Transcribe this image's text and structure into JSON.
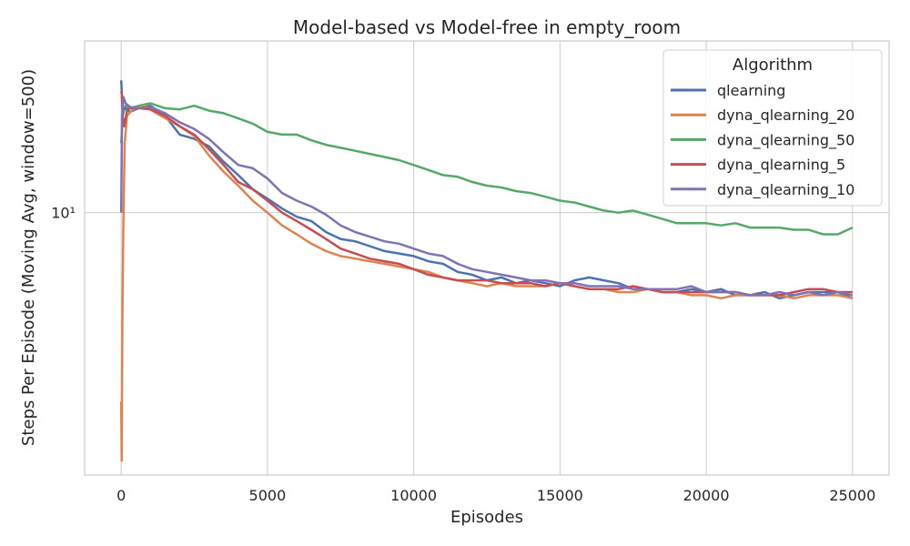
{
  "chart_data": {
    "type": "line",
    "title": "Model-based vs Model-free in empty_room",
    "xlabel": "Episodes",
    "ylabel": "Steps Per Episode (Moving Avg, window=500)",
    "xlim": [
      -1250,
      26250
    ],
    "xticks": [
      0,
      5000,
      10000,
      15000,
      20000,
      25000
    ],
    "xtick_labels": [
      "0",
      "5000",
      "10000",
      "15000",
      "20000",
      "25000"
    ],
    "yscale": "log",
    "ylim": [
      2.8,
      23
    ],
    "yticks": [
      10
    ],
    "ytick_labels": [
      "10¹"
    ],
    "grid": true,
    "legend": {
      "title": "Algorithm",
      "position": "top-right"
    },
    "series": [
      {
        "name": "qlearning",
        "color": "#4c72b0",
        "x": [
          0,
          30,
          60,
          150,
          300,
          600,
          1000,
          1500,
          2000,
          2500,
          3000,
          3500,
          4000,
          4500,
          5000,
          5500,
          6000,
          6500,
          7000,
          7500,
          8000,
          8500,
          9000,
          9500,
          10000,
          10500,
          11000,
          11500,
          12000,
          12500,
          13000,
          13500,
          14000,
          14500,
          15000,
          15500,
          16000,
          16500,
          17000,
          17500,
          18000,
          18500,
          19000,
          19500,
          20000,
          20500,
          21000,
          21500,
          22000,
          22500,
          23000,
          23500,
          24000,
          24500,
          25000
        ],
        "y": [
          19.0,
          17.5,
          16.5,
          16.6,
          16.3,
          16.6,
          16.8,
          16.0,
          14.6,
          14.3,
          13.8,
          12.8,
          12.0,
          11.2,
          10.7,
          10.2,
          9.8,
          9.6,
          9.1,
          8.8,
          8.7,
          8.5,
          8.3,
          8.2,
          8.1,
          7.9,
          7.8,
          7.5,
          7.4,
          7.2,
          7.3,
          7.1,
          7.2,
          7.1,
          7.0,
          7.2,
          7.3,
          7.2,
          7.1,
          6.9,
          6.9,
          6.8,
          6.8,
          6.9,
          6.8,
          6.9,
          6.7,
          6.7,
          6.8,
          6.6,
          6.7,
          6.8,
          6.8,
          6.8,
          6.6
        ]
      },
      {
        "name": "dyna_qlearning_20",
        "color": "#dd8452",
        "x": [
          0,
          15,
          40,
          70,
          120,
          200,
          400,
          800,
          1200,
          1600,
          2000,
          2500,
          3000,
          3500,
          4000,
          4500,
          5000,
          5500,
          6000,
          6500,
          7000,
          7500,
          8000,
          8500,
          9000,
          9500,
          10000,
          10500,
          11000,
          11500,
          12000,
          12500,
          13000,
          13500,
          14000,
          14500,
          15000,
          15500,
          16000,
          16500,
          17000,
          17500,
          18000,
          18500,
          19000,
          19500,
          20000,
          20500,
          21000,
          21500,
          22000,
          22500,
          23000,
          23500,
          24000,
          24500,
          25000
        ],
        "y": [
          4.0,
          3.0,
          6.0,
          9.0,
          14.0,
          16.0,
          16.5,
          16.8,
          16.2,
          15.7,
          15.2,
          14.5,
          13.2,
          12.2,
          11.4,
          10.6,
          10.0,
          9.4,
          9.0,
          8.6,
          8.3,
          8.1,
          8.0,
          7.9,
          7.8,
          7.7,
          7.6,
          7.5,
          7.3,
          7.2,
          7.1,
          7.0,
          7.1,
          7.0,
          7.0,
          7.0,
          7.1,
          7.0,
          6.9,
          6.9,
          6.8,
          6.8,
          6.9,
          6.8,
          6.8,
          6.7,
          6.7,
          6.6,
          6.7,
          6.7,
          6.7,
          6.7,
          6.6,
          6.7,
          6.7,
          6.7,
          6.6
        ]
      },
      {
        "name": "dyna_qlearning_50",
        "color": "#55a868",
        "x": [
          0,
          50,
          150,
          300,
          600,
          1000,
          1500,
          2000,
          2500,
          3000,
          3500,
          4000,
          4500,
          5000,
          5500,
          6000,
          6500,
          7000,
          7500,
          8000,
          8500,
          9000,
          9500,
          10000,
          10500,
          11000,
          11500,
          12000,
          12500,
          13000,
          13500,
          14000,
          14500,
          15000,
          15500,
          16000,
          16500,
          17000,
          17500,
          18000,
          18500,
          19000,
          19500,
          20000,
          20500,
          21000,
          21500,
          22000,
          22500,
          23000,
          23500,
          24000,
          24500,
          25000
        ],
        "y": [
          14.0,
          16.0,
          16.8,
          16.6,
          16.8,
          17.0,
          16.6,
          16.5,
          16.8,
          16.4,
          16.2,
          15.8,
          15.4,
          14.8,
          14.6,
          14.6,
          14.2,
          13.9,
          13.7,
          13.5,
          13.3,
          13.1,
          12.9,
          12.6,
          12.3,
          12.0,
          11.9,
          11.6,
          11.4,
          11.3,
          11.1,
          11.0,
          10.8,
          10.6,
          10.5,
          10.3,
          10.1,
          10.0,
          10.1,
          9.9,
          9.7,
          9.5,
          9.5,
          9.5,
          9.4,
          9.5,
          9.3,
          9.3,
          9.3,
          9.2,
          9.2,
          9.0,
          9.0,
          9.3
        ]
      },
      {
        "name": "dyna_qlearning_5",
        "color": "#c44e52",
        "x": [
          0,
          20,
          50,
          100,
          200,
          300,
          600,
          1000,
          1500,
          2000,
          2500,
          3000,
          3500,
          4000,
          4500,
          5000,
          5500,
          6000,
          6500,
          7000,
          7500,
          8000,
          8500,
          9000,
          9500,
          10000,
          10500,
          11000,
          11500,
          12000,
          12500,
          13000,
          13500,
          14000,
          14500,
          15000,
          15500,
          16000,
          16500,
          17000,
          17500,
          18000,
          18500,
          19000,
          19500,
          20000,
          20500,
          21000,
          21500,
          22000,
          22500,
          23000,
          23500,
          24000,
          24500,
          25000
        ],
        "y": [
          18.0,
          17.8,
          16.0,
          15.2,
          16.4,
          16.6,
          16.6,
          16.5,
          16.0,
          15.2,
          14.6,
          13.6,
          12.6,
          11.6,
          11.2,
          10.6,
          10.0,
          9.6,
          9.2,
          8.8,
          8.4,
          8.2,
          8.0,
          7.9,
          7.8,
          7.6,
          7.4,
          7.3,
          7.2,
          7.2,
          7.2,
          7.1,
          7.1,
          7.1,
          7.0,
          7.1,
          7.0,
          6.9,
          6.9,
          6.9,
          7.0,
          6.9,
          6.8,
          6.8,
          6.8,
          6.8,
          6.8,
          6.8,
          6.7,
          6.7,
          6.7,
          6.8,
          6.9,
          6.9,
          6.8,
          6.8
        ]
      },
      {
        "name": "dyna_qlearning_10",
        "color": "#8172b3",
        "x": [
          0,
          30,
          80,
          150,
          300,
          600,
          1000,
          1500,
          2000,
          2500,
          3000,
          3500,
          4000,
          4500,
          5000,
          5500,
          6000,
          6500,
          7000,
          7500,
          8000,
          8500,
          9000,
          9500,
          10000,
          10500,
          11000,
          11500,
          12000,
          12500,
          13000,
          13500,
          14000,
          14500,
          15000,
          15500,
          16000,
          16500,
          17000,
          17500,
          18000,
          18500,
          19000,
          19500,
          20000,
          20500,
          21000,
          21500,
          22000,
          22500,
          23000,
          23500,
          24000,
          24500,
          25000
        ],
        "y": [
          10.0,
          16.0,
          17.5,
          17.0,
          16.7,
          16.6,
          16.7,
          16.2,
          15.5,
          15.0,
          14.3,
          13.4,
          12.6,
          12.4,
          11.8,
          11.0,
          10.6,
          10.3,
          9.9,
          9.4,
          9.1,
          8.9,
          8.7,
          8.6,
          8.4,
          8.2,
          8.1,
          7.8,
          7.6,
          7.5,
          7.4,
          7.3,
          7.2,
          7.2,
          7.1,
          7.1,
          7.0,
          7.0,
          7.0,
          6.9,
          6.9,
          6.9,
          6.9,
          7.0,
          6.8,
          6.8,
          6.8,
          6.7,
          6.7,
          6.8,
          6.7,
          6.8,
          6.7,
          6.8,
          6.7
        ]
      }
    ]
  }
}
